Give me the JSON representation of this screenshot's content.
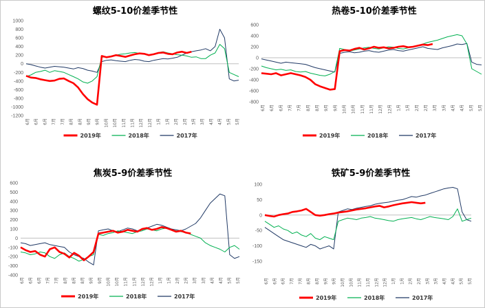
{
  "legend_labels": [
    "2019年",
    "2018年",
    "2017年"
  ],
  "colors": {
    "2019": "#ff0000",
    "2018": "#00b050",
    "2017": "#1f3864",
    "zero_line": "#bfbfbf"
  },
  "chart_data": [
    {
      "type": "line",
      "title": "螺纹5-10价差季节性",
      "ylim": [
        -1200,
        1000
      ],
      "yticks": [
        "1000",
        "800",
        "600",
        "400",
        "200",
        "0",
        "-200",
        "-400",
        "-600",
        "-800",
        "-1000",
        "-1200"
      ],
      "xlabels": [
        "6月",
        "6月",
        "6月",
        "7月",
        "7月",
        "8月",
        "8月",
        "9月",
        "9月",
        "10月",
        "10月",
        "11月",
        "11月",
        "12月",
        "12月",
        "1月",
        "1月",
        "2月",
        "2月",
        "3月",
        "3月",
        "4月",
        "4月",
        "5月",
        "5月"
      ],
      "grid": false,
      "legend_position": "bottom",
      "series": [
        {
          "name": "2019年",
          "values": [
            -280,
            -320,
            -330,
            -360,
            -380,
            -400,
            -390,
            -350,
            -340,
            -400,
            -450,
            -550,
            -700,
            -820,
            -900,
            -950,
            180,
            150,
            170,
            200,
            180,
            160,
            190,
            220,
            240,
            230,
            200,
            220,
            250,
            260,
            230,
            220,
            260,
            280,
            250,
            280,
            null,
            null,
            null,
            null,
            null,
            null,
            null,
            null,
            null,
            null
          ]
        },
        {
          "name": "2018年",
          "values": [
            -300,
            -260,
            -200,
            -180,
            -150,
            -200,
            -160,
            -180,
            -200,
            -250,
            -300,
            -350,
            -420,
            -450,
            -400,
            -300,
            150,
            160,
            180,
            200,
            220,
            230,
            250,
            260,
            240,
            220,
            200,
            230,
            260,
            280,
            250,
            230,
            210,
            200,
            180,
            150,
            160,
            120,
            120,
            200,
            250,
            450,
            350,
            -200,
            -250,
            -300
          ]
        },
        {
          "name": "2017年",
          "values": [
            0,
            -20,
            -50,
            -80,
            -100,
            -80,
            -60,
            -70,
            -80,
            -100,
            -120,
            -90,
            -110,
            -150,
            -170,
            -200,
            50,
            80,
            90,
            70,
            60,
            50,
            80,
            100,
            90,
            60,
            50,
            80,
            100,
            120,
            110,
            130,
            150,
            200,
            250,
            280,
            300,
            320,
            350,
            300,
            400,
            800,
            600,
            -350,
            -400,
            -380
          ]
        }
      ]
    },
    {
      "type": "line",
      "title": "热卷5-10价差季节性",
      "ylim": [
        -800,
        600
      ],
      "yticks": [
        "600",
        "400",
        "200",
        "0",
        "-200",
        "-400",
        "-600",
        "-800"
      ],
      "xlabels": [
        "6月",
        "6月",
        "6月",
        "7月",
        "7月",
        "8月",
        "8月",
        "9月",
        "9月",
        "10月",
        "10月",
        "11月",
        "11月",
        "12月",
        "12月",
        "1月",
        "1月",
        "2月",
        "2月",
        "3月",
        "3月",
        "4月",
        "4月",
        "5月",
        "5月"
      ],
      "grid": false,
      "legend_position": "bottom",
      "series": [
        {
          "name": "2019年",
          "values": [
            -280,
            -290,
            -300,
            -280,
            -320,
            -300,
            -280,
            -300,
            -320,
            -350,
            -400,
            -480,
            -520,
            -550,
            -580,
            -570,
            120,
            140,
            130,
            160,
            180,
            150,
            170,
            200,
            180,
            190,
            170,
            180,
            200,
            210,
            190,
            200,
            220,
            240,
            230,
            250,
            null,
            null,
            null,
            null,
            null,
            null,
            null,
            null,
            null,
            null
          ]
        },
        {
          "name": "2018年",
          "values": [
            -150,
            -180,
            -200,
            -220,
            -210,
            -230,
            -220,
            -250,
            -260,
            -250,
            -280,
            -300,
            -320,
            -330,
            -300,
            -250,
            170,
            150,
            120,
            140,
            160,
            180,
            190,
            170,
            160,
            180,
            200,
            190,
            170,
            160,
            180,
            200,
            220,
            250,
            280,
            300,
            320,
            350,
            380,
            400,
            420,
            400,
            250,
            -200,
            -250,
            -300
          ]
        },
        {
          "name": "2017年",
          "values": [
            -20,
            -40,
            -60,
            -80,
            -100,
            -80,
            -90,
            -100,
            -110,
            -120,
            -150,
            -180,
            -200,
            -220,
            -240,
            -260,
            80,
            100,
            110,
            90,
            100,
            120,
            130,
            110,
            100,
            120,
            140,
            150,
            130,
            120,
            140,
            160,
            180,
            200,
            170,
            160,
            150,
            180,
            200,
            220,
            250,
            240,
            260,
            -80,
            -120,
            -130
          ]
        }
      ]
    },
    {
      "type": "line",
      "title": "焦炭5-9价差季节性",
      "ylim": [
        -400,
        600
      ],
      "yticks": [
        "600",
        "500",
        "400",
        "300",
        "200",
        "100",
        "0",
        "-100",
        "-200",
        "-300",
        "-400"
      ],
      "xlabels": [
        "6月",
        "6月",
        "6月",
        "7月",
        "7月",
        "8月",
        "8月",
        "8月",
        "9月",
        "9月",
        "10月",
        "10月",
        "11月",
        "11月",
        "12月",
        "12月",
        "1月",
        "1月",
        "2月",
        "2月",
        "3月",
        "3月",
        "4月",
        "4月",
        "5月",
        "5月"
      ],
      "grid": false,
      "legend_position": "bottom",
      "series": [
        {
          "name": "2019年",
          "values": [
            -100,
            -130,
            -150,
            -140,
            -180,
            -200,
            -120,
            -100,
            -150,
            -170,
            -210,
            -160,
            -190,
            -240,
            -200,
            -150,
            50,
            60,
            70,
            80,
            60,
            70,
            90,
            80,
            70,
            100,
            110,
            90,
            100,
            120,
            110,
            90,
            70,
            80,
            60,
            50,
            null,
            null,
            null,
            null,
            null,
            null,
            null,
            null,
            null,
            null
          ]
        },
        {
          "name": "2018年",
          "values": [
            -150,
            -160,
            -180,
            -170,
            -150,
            -160,
            -200,
            -220,
            -180,
            -160,
            -200,
            -220,
            -250,
            -230,
            -200,
            -180,
            40,
            30,
            50,
            60,
            80,
            70,
            60,
            50,
            70,
            80,
            100,
            90,
            80,
            100,
            110,
            90,
            80,
            70,
            60,
            40,
            20,
            0,
            -50,
            -80,
            -100,
            -120,
            -150,
            -100,
            -80,
            -120
          ]
        },
        {
          "name": "2017年",
          "values": [
            -50,
            -60,
            -80,
            -70,
            -60,
            -50,
            -70,
            -80,
            -90,
            -100,
            -150,
            -180,
            -200,
            -220,
            -260,
            -290,
            80,
            90,
            100,
            80,
            70,
            90,
            110,
            100,
            80,
            90,
            110,
            130,
            150,
            140,
            120,
            100,
            90,
            80,
            100,
            130,
            160,
            220,
            300,
            380,
            430,
            480,
            460,
            -180,
            -220,
            -200
          ]
        }
      ]
    },
    {
      "type": "line",
      "title": "铁矿5-9价差季节性",
      "ylim": [
        -150,
        100
      ],
      "yticks": [
        "100",
        "50",
        "0",
        "-50",
        "-100",
        "-150"
      ],
      "xlabels": [
        "6月",
        "6月",
        "6月",
        "7月",
        "7月",
        "8月",
        "8月",
        "9月",
        "9月",
        "10月",
        "10月",
        "11月",
        "11月",
        "12月",
        "12月",
        "1月",
        "1月",
        "2月",
        "2月",
        "3月",
        "3月",
        "4月",
        "4月",
        "5月",
        "5月"
      ],
      "grid": false,
      "legend_position": "bottom",
      "series": [
        {
          "name": "2019年",
          "values": [
            0,
            -3,
            -5,
            0,
            3,
            5,
            10,
            12,
            15,
            20,
            10,
            0,
            -2,
            0,
            3,
            5,
            8,
            10,
            12,
            15,
            18,
            20,
            22,
            25,
            28,
            30,
            25,
            28,
            32,
            35,
            38,
            40,
            42,
            40,
            38,
            40,
            null,
            null,
            null,
            null,
            null,
            null,
            null,
            null,
            null,
            null
          ]
        },
        {
          "name": "2018年",
          "values": [
            -20,
            -30,
            -40,
            -35,
            -45,
            -50,
            -60,
            -55,
            -65,
            -70,
            -60,
            -75,
            -80,
            -70,
            -75,
            -80,
            -20,
            -15,
            -10,
            -12,
            -15,
            -10,
            -8,
            -5,
            -10,
            -12,
            -15,
            -18,
            -20,
            -15,
            -12,
            -10,
            -8,
            -12,
            -15,
            -10,
            -5,
            -8,
            -10,
            -12,
            -15,
            -5,
            20,
            -20,
            -15,
            -10
          ]
        },
        {
          "name": "2017年",
          "values": [
            -40,
            -50,
            -60,
            -70,
            -80,
            -85,
            -90,
            -95,
            -100,
            -105,
            -95,
            -100,
            -110,
            -105,
            -100,
            -110,
            10,
            15,
            20,
            18,
            22,
            25,
            28,
            30,
            35,
            38,
            40,
            42,
            45,
            48,
            50,
            55,
            60,
            58,
            62,
            65,
            70,
            75,
            80,
            85,
            88,
            90,
            85,
            10,
            -15,
            -20
          ]
        }
      ]
    }
  ]
}
